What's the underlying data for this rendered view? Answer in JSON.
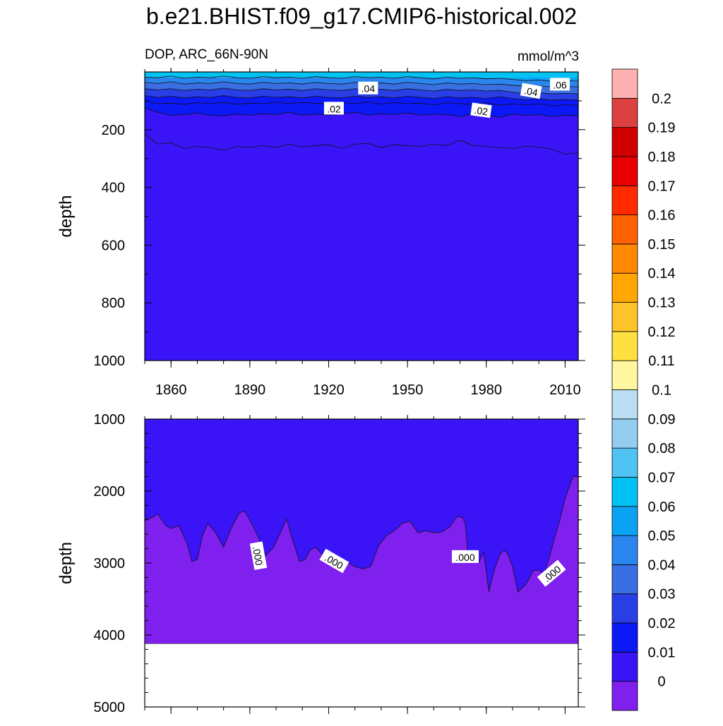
{
  "chart_data": {
    "type": "contour",
    "title": "b.e21.BHIST.f09_g17.CMIP6-historical.002",
    "variable_label": "DOP, ARC_66N-90N",
    "units_label": "mmol/m^3",
    "colorbar": {
      "levels": [
        "0",
        "0.01",
        "0.02",
        "0.03",
        "0.04",
        "0.05",
        "0.06",
        "0.07",
        "0.08",
        "0.09",
        "0.1",
        "0.11",
        "0.12",
        "0.13",
        "0.14",
        "0.15",
        "0.16",
        "0.17",
        "0.18",
        "0.19",
        "0.2"
      ],
      "colors": [
        "#7f20ee",
        "#3a14f7",
        "#0c18f5",
        "#2a3ee6",
        "#3a6fe3",
        "#2a86ee",
        "#0aa2f2",
        "#00c3f3",
        "#50c3f5",
        "#93cdf0",
        "#badff5",
        "#fff7a0",
        "#ffe040",
        "#ffc32a",
        "#ffa700",
        "#ff8a00",
        "#ff6000",
        "#ff2a00",
        "#ea0000",
        "#d00000",
        "#dc4040",
        "#ffb0b0"
      ]
    },
    "panels": [
      {
        "name": "upper",
        "ylabel": "depth",
        "ylim": [
          1000,
          0
        ],
        "xlim": [
          1850,
          2015
        ],
        "xticks": [
          "1860",
          "1890",
          "1920",
          "1950",
          "1980",
          "2010"
        ],
        "xtick_values": [
          1860,
          1890,
          1920,
          1950,
          1980,
          2010
        ],
        "yticks": [
          "200",
          "400",
          "600",
          "800",
          "1000"
        ],
        "ytick_values": [
          200,
          400,
          600,
          800,
          1000
        ],
        "contour_labels": [
          {
            "text": ".04",
            "year": 1935,
            "depth": 58
          },
          {
            "text": ".04",
            "year": 1997,
            "depth": 68
          },
          {
            "text": ".06",
            "year": 2008,
            "depth": 45
          },
          {
            "text": ".02",
            "year": 1922,
            "depth": 128
          },
          {
            "text": ".02",
            "year": 1978,
            "depth": 135
          }
        ],
        "isolines": {
          "years": [
            1850,
            1855,
            1860,
            1865,
            1870,
            1875,
            1880,
            1885,
            1890,
            1895,
            1900,
            1905,
            1910,
            1915,
            1920,
            1925,
            1930,
            1935,
            1940,
            1945,
            1950,
            1955,
            1960,
            1965,
            1970,
            1975,
            1980,
            1985,
            1990,
            1995,
            2000,
            2005,
            2010,
            2015
          ],
          "level_0_00": [
            215,
            250,
            245,
            265,
            258,
            262,
            272,
            258,
            262,
            255,
            262,
            250,
            260,
            255,
            252,
            265,
            250,
            248,
            262,
            252,
            256,
            258,
            250,
            255,
            236,
            255,
            258,
            262,
            265,
            258,
            260,
            268,
            285,
            280
          ],
          "level_0_01": [
            125,
            140,
            150,
            148,
            143,
            150,
            152,
            146,
            150,
            145,
            148,
            140,
            150,
            146,
            150,
            145,
            140,
            150,
            145,
            148,
            142,
            150,
            146,
            148,
            155,
            145,
            150,
            158,
            146,
            150,
            148,
            155,
            150,
            152
          ],
          "level_0_02": [
            100,
            110,
            108,
            112,
            106,
            110,
            105,
            112,
            108,
            110,
            104,
            110,
            106,
            108,
            112,
            106,
            110,
            104,
            112,
            106,
            110,
            108,
            114,
            106,
            110,
            112,
            106,
            116,
            110,
            114,
            110,
            118,
            114,
            116
          ],
          "level_0_03": [
            82,
            88,
            84,
            90,
            86,
            88,
            82,
            88,
            90,
            84,
            88,
            86,
            90,
            84,
            88,
            90,
            84,
            88,
            86,
            90,
            84,
            88,
            92,
            86,
            90,
            88,
            92,
            86,
            92,
            96,
            92,
            98,
            95,
            98
          ],
          "level_0_04": [
            58,
            62,
            58,
            64,
            60,
            62,
            56,
            62,
            64,
            58,
            62,
            60,
            64,
            58,
            62,
            64,
            58,
            62,
            60,
            64,
            58,
            62,
            66,
            60,
            64,
            62,
            66,
            64,
            70,
            74,
            72,
            76,
            74,
            76
          ],
          "level_0_05": [
            36,
            40,
            34,
            42,
            38,
            40,
            34,
            40,
            42,
            36,
            40,
            38,
            42,
            36,
            40,
            42,
            36,
            40,
            38,
            42,
            36,
            40,
            44,
            38,
            42,
            40,
            44,
            42,
            46,
            50,
            48,
            52,
            50,
            52
          ],
          "level_0_06": [
            18,
            20,
            14,
            22,
            18,
            20,
            14,
            20,
            22,
            16,
            20,
            18,
            22,
            16,
            20,
            22,
            16,
            20,
            18,
            22,
            16,
            20,
            24,
            18,
            22,
            20,
            24,
            22,
            26,
            30,
            28,
            32,
            30,
            32
          ]
        }
      },
      {
        "name": "lower",
        "ylabel": "depth",
        "ylim": [
          5000,
          1000
        ],
        "xlim": [
          1850,
          2015
        ],
        "xtick_values": [
          1860,
          1890,
          1920,
          1950,
          1980,
          2010
        ],
        "yticks": [
          "1000",
          "2000",
          "3000",
          "4000",
          "5000"
        ],
        "ytick_values": [
          1000,
          2000,
          3000,
          4000,
          5000
        ],
        "bottom_depth": 4120,
        "contour_labels": [
          {
            "text": ".000",
            "year": 1893,
            "depth": 2900,
            "angle": 80
          },
          {
            "text": ".000",
            "year": 1922,
            "depth": 2980,
            "angle": 30
          },
          {
            "text": ".000",
            "year": 1972,
            "depth": 2920,
            "angle": 0
          },
          {
            "text": ".000",
            "year": 2005,
            "depth": 3150,
            "angle": -40
          }
        ],
        "boundary": {
          "years": [
            1850,
            1852,
            1855,
            1858,
            1860,
            1863,
            1866,
            1868,
            1870,
            1872,
            1874,
            1877,
            1880,
            1883,
            1886,
            1888,
            1890,
            1893,
            1896,
            1899,
            1902,
            1904,
            1906,
            1909,
            1911,
            1913,
            1915,
            1918,
            1921,
            1924,
            1927,
            1930,
            1933,
            1936,
            1939,
            1942,
            1945,
            1948,
            1951,
            1954,
            1957,
            1960,
            1963,
            1966,
            1969,
            1971,
            1972,
            1973,
            1975,
            1977,
            1979,
            1981,
            1983,
            1985,
            1986,
            1987,
            1988,
            1990,
            1992,
            1995,
            1998,
            2000,
            2002,
            2004,
            2006,
            2008,
            2010,
            2012,
            2013,
            2015
          ],
          "depths": [
            2400,
            2380,
            2320,
            2480,
            2520,
            2480,
            2720,
            2980,
            2950,
            2620,
            2450,
            2580,
            2780,
            2510,
            2300,
            2280,
            2400,
            2620,
            2900,
            2780,
            2550,
            2390,
            2650,
            2980,
            2950,
            2820,
            2780,
            2900,
            2870,
            2960,
            2990,
            3050,
            3080,
            3050,
            2760,
            2620,
            2550,
            2450,
            2420,
            2580,
            2550,
            2580,
            2570,
            2500,
            2350,
            2370,
            2450,
            2900,
            2850,
            3000,
            2850,
            3400,
            3100,
            2900,
            2850,
            2830,
            2860,
            3050,
            3400,
            3300,
            3100,
            3100,
            3150,
            2920,
            2650,
            2400,
            2100,
            1900,
            1800,
            1800
          ]
        }
      }
    ]
  }
}
